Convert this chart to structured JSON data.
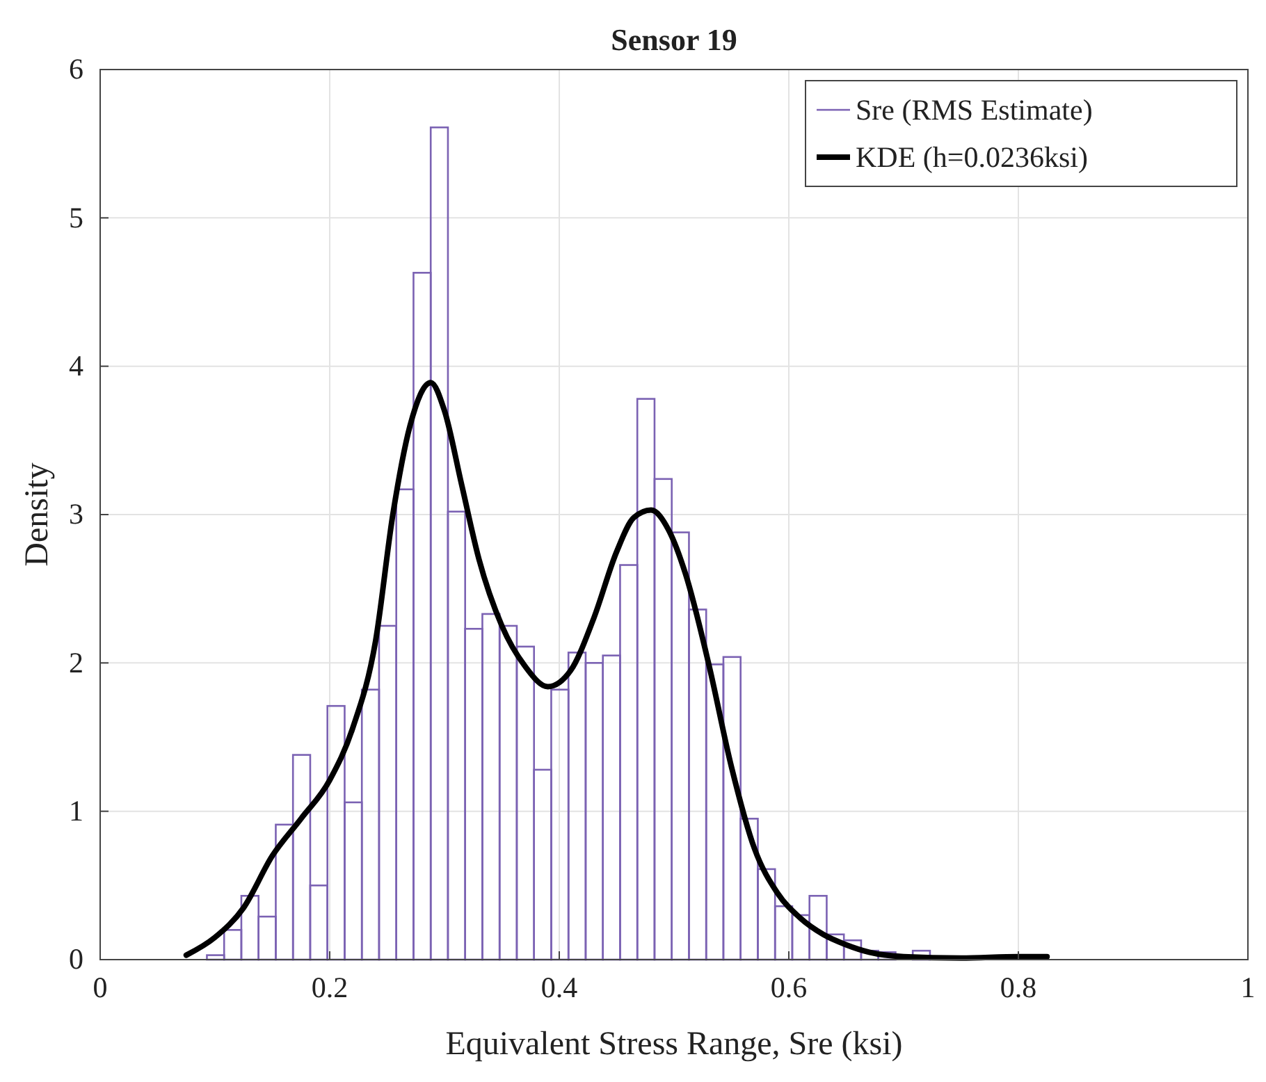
{
  "chart_data": {
    "type": "histogram",
    "title": "Sensor 19",
    "xlabel": "Equivalent Stress Range, Sre (ksi)",
    "ylabel": "Density",
    "bins": [
      0.093,
      0.108,
      0.123,
      0.138,
      0.153,
      0.168,
      0.183,
      0.198,
      0.213,
      0.228,
      0.243,
      0.258,
      0.273,
      0.288,
      0.303,
      0.318,
      0.333,
      0.348,
      0.363,
      0.378,
      0.393,
      0.408,
      0.423,
      0.438,
      0.453,
      0.468,
      0.483,
      0.498,
      0.513,
      0.528,
      0.543,
      0.558,
      0.573,
      0.588,
      0.603,
      0.618,
      0.633,
      0.648,
      0.663,
      0.678,
      0.693,
      0.708,
      0.723
    ],
    "series": [
      {
        "name": "Sre (RMS Estimate)",
        "color": "#7b62b3",
        "values": [
          0.03,
          0.2,
          0.43,
          0.29,
          0.91,
          1.38,
          0.5,
          1.71,
          1.06,
          1.82,
          2.25,
          3.17,
          4.63,
          5.61,
          3.02,
          2.23,
          2.33,
          2.25,
          2.11,
          1.28,
          1.82,
          2.07,
          2.0,
          2.05,
          2.66,
          3.78,
          3.24,
          2.88,
          2.36,
          1.99,
          2.04,
          0.95,
          0.61,
          0.36,
          0.3,
          0.43,
          0.17,
          0.13,
          0.06,
          0.05,
          null,
          0.06
        ]
      },
      {
        "name": "KDE (h=0.0236ksi)",
        "type": "line",
        "color": "#000000",
        "x": [
          0.075,
          0.1,
          0.125,
          0.15,
          0.175,
          0.2,
          0.22,
          0.24,
          0.255,
          0.27,
          0.288,
          0.3,
          0.315,
          0.33,
          0.35,
          0.37,
          0.39,
          0.41,
          0.43,
          0.45,
          0.465,
          0.48,
          0.495,
          0.51,
          0.53,
          0.55,
          0.57,
          0.59,
          0.61,
          0.63,
          0.65,
          0.67,
          0.7,
          0.75,
          0.8,
          0.825
        ],
        "values": [
          0.03,
          0.15,
          0.35,
          0.7,
          0.95,
          1.21,
          1.56,
          2.15,
          3.0,
          3.6,
          3.89,
          3.7,
          3.2,
          2.7,
          2.25,
          1.98,
          1.84,
          1.95,
          2.3,
          2.75,
          2.98,
          3.03,
          2.9,
          2.6,
          2.0,
          1.3,
          0.75,
          0.45,
          0.28,
          0.17,
          0.1,
          0.05,
          0.02,
          0.01,
          0.02,
          0.02
        ]
      }
    ],
    "xlim": [
      0,
      1
    ],
    "xticks": [
      0,
      0.2,
      0.4,
      0.6,
      0.8,
      1
    ],
    "ylim": [
      0,
      6
    ],
    "yticks": [
      0,
      1,
      2,
      3,
      4,
      5,
      6
    ],
    "grid": true,
    "legend": "top right"
  }
}
